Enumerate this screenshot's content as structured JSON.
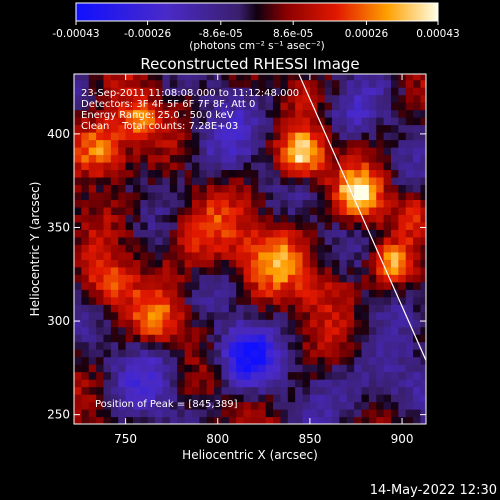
{
  "window": {
    "timestamp": "14-May-2022 12:30"
  },
  "chart_data": {
    "type": "heatmap",
    "title": "Reconstructed RHESSI Image",
    "xlabel": "Heliocentric X (arcsec)",
    "ylabel": "Heliocentric Y (arcsec)",
    "xlim": [
      722,
      913
    ],
    "ylim": [
      245,
      432
    ],
    "xticks": [
      750,
      800,
      850,
      900
    ],
    "yticks": [
      250,
      300,
      350,
      400
    ],
    "colorbar": {
      "ticks": [
        "-0.00043",
        "-0.00026",
        "-8.6e-05",
        "8.6e-05",
        "0.00026",
        "0.00043"
      ],
      "tick_values": [
        -0.00043,
        -0.00026,
        -8.6e-05,
        8.6e-05,
        0.00026,
        0.00043
      ],
      "range": [
        -0.00043,
        0.00043
      ],
      "units": "(photons cm⁻² s⁻¹ asec⁻²)"
    },
    "annotations": [
      "23-Sep-2011 11:08:08.000 to 11:12:48.000",
      "Detectors: 3F 4F 5F 6F 7F 8F, Att 0",
      "Energy Range: 25.0 - 50.0 keV",
      "Clean    Total counts: 7.28E+03"
    ],
    "peak_label": "Position of Peak = [845,389]",
    "peak": [
      845,
      389
    ],
    "limb_line": [
      [
        844,
        432
      ],
      [
        913,
        279
      ]
    ],
    "sources": [
      {
        "x": 845,
        "y": 389,
        "amp": 1.0,
        "sigma": 9
      },
      {
        "x": 877,
        "y": 368,
        "amp": 0.85,
        "sigma": 9
      },
      {
        "x": 737,
        "y": 392,
        "amp": 0.9,
        "sigma": 11
      },
      {
        "x": 757,
        "y": 408,
        "amp": 0.7,
        "sigma": 8
      },
      {
        "x": 895,
        "y": 330,
        "amp": 0.65,
        "sigma": 7
      },
      {
        "x": 790,
        "y": 345,
        "amp": 0.45,
        "sigma": 14
      },
      {
        "x": 830,
        "y": 335,
        "amp": 0.5,
        "sigma": 14
      },
      {
        "x": 768,
        "y": 300,
        "amp": 0.5,
        "sigma": 10
      },
      {
        "x": 740,
        "y": 320,
        "amp": 0.55,
        "sigma": 10
      },
      {
        "x": 860,
        "y": 318,
        "amp": 0.35,
        "sigma": 12
      },
      {
        "x": 905,
        "y": 360,
        "amp": 0.3,
        "sigma": 7
      },
      {
        "x": 815,
        "y": 282,
        "amp": -0.85,
        "sigma": 11
      },
      {
        "x": 765,
        "y": 270,
        "amp": -0.35,
        "sigma": 14
      },
      {
        "x": 800,
        "y": 395,
        "amp": -0.35,
        "sigma": 14
      },
      {
        "x": 870,
        "y": 410,
        "amp": -0.3,
        "sigma": 10
      },
      {
        "x": 895,
        "y": 265,
        "amp": -0.35,
        "sigma": 12
      },
      {
        "x": 870,
        "y": 265,
        "amp": -0.25,
        "sigma": 12
      }
    ]
  }
}
